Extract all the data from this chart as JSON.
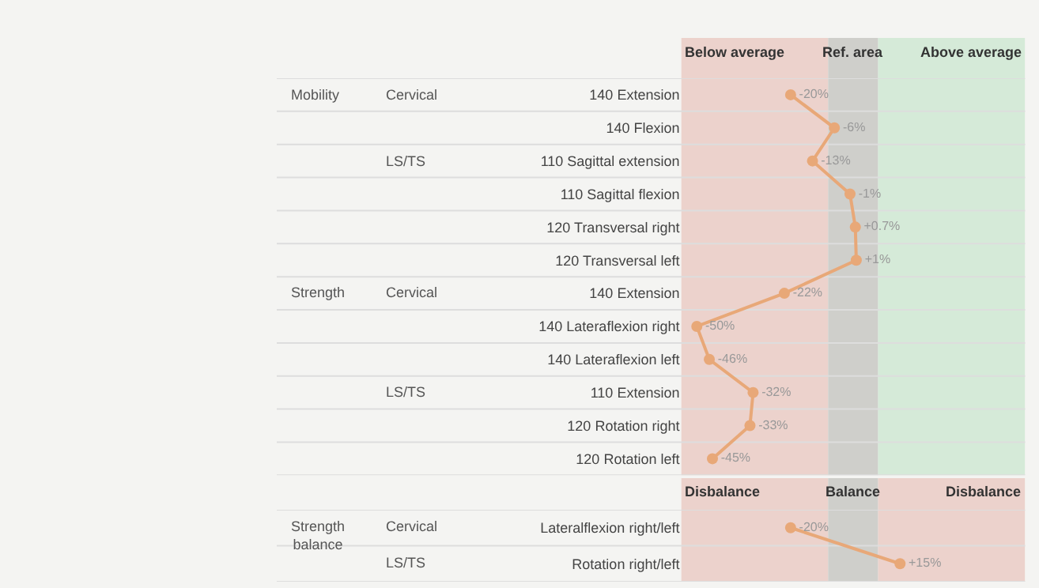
{
  "chart_data": [
    {
      "type": "line",
      "orientation": "horizontal",
      "categories": [
        "140 Extension",
        "140 Flexion",
        "110 Sagittal extension",
        "110 Sagittal flexion",
        "120 Transversal right",
        "120 Transversal left",
        "140 Extension",
        "140 Lateraflexion right",
        "140 Lateraflexion left",
        "110 Extension",
        "120 Rotation right",
        "120 Rotation left"
      ],
      "values": [
        -20,
        -6,
        -13,
        -1,
        0.7,
        1,
        -22,
        -50,
        -46,
        -32,
        -33,
        -45
      ],
      "value_labels": [
        "-20%",
        "-6%",
        "-13%",
        "-1%",
        "+0.7%",
        "+1%",
        "-22%",
        "-50%",
        "-46%",
        "-32%",
        "-33%",
        "-45%"
      ],
      "color": "#e8a878",
      "marker": "circle",
      "line_style": "solid",
      "grid": "y",
      "tick_labels": "y",
      "bands": [
        {
          "axis": "x",
          "from": -55,
          "to": -8,
          "label": "Below average",
          "color": "#ecd2cc"
        },
        {
          "axis": "x",
          "from": -8,
          "to": 8,
          "label": "Ref. area",
          "color": "#cfcfcb"
        },
        {
          "axis": "x",
          "from": 8,
          "to": 55,
          "label": "Above average",
          "color": "#d5ead8"
        }
      ],
      "annotations": [
        "Mobility",
        "Cervical",
        "LS/TS",
        "Strength",
        "Cervical",
        "LS/TS"
      ]
    },
    {
      "type": "line",
      "orientation": "horizontal",
      "categories": [
        "Lateralflexion right/left",
        "Rotation right/left"
      ],
      "values": [
        -20,
        15
      ],
      "value_labels": [
        "-20%",
        "+15%"
      ],
      "color": "#e8a878",
      "marker": "circle",
      "line_style": "solid",
      "grid": "y",
      "tick_labels": "y",
      "bands": [
        {
          "axis": "x",
          "from": -55,
          "to": -8,
          "label": "Disbalance",
          "color": "#ecd2cc"
        },
        {
          "axis": "x",
          "from": -8,
          "to": 8,
          "label": "Balance",
          "color": "#cfcfcb"
        },
        {
          "axis": "x",
          "from": 8,
          "to": 55,
          "label": "Disbalance",
          "color": "#ecd2cc"
        }
      ],
      "annotations": [
        "Strength balance",
        "Cervical",
        "LS/TS"
      ]
    }
  ]
}
